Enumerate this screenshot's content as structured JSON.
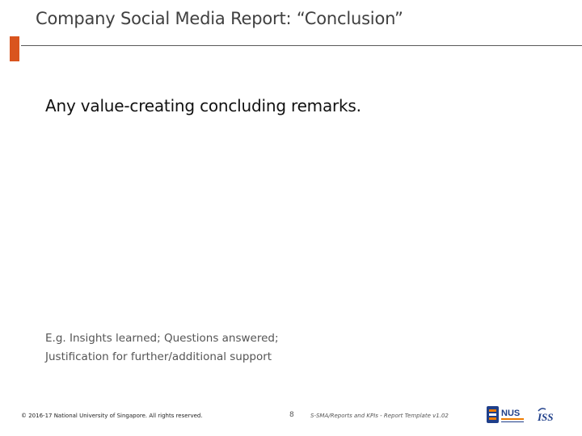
{
  "slide": {
    "title": "Company Social Media Report: “Conclusion”",
    "headline": "Any value-creating concluding remarks.",
    "note_lines": [
      "E.g. Insights learned; Questions answered;",
      "Justification for further/additional support"
    ]
  },
  "footer": {
    "copyright": "© 2016-17 National University of Singapore. All rights reserved.",
    "page_number": "8",
    "reference": "S-SMA/Reports and KPIs - Report Template v1.02",
    "logos": {
      "nus": "NUS",
      "iss": "ISS"
    }
  },
  "colors": {
    "accent": "#d9541e",
    "nus_blue": "#1f3f8a",
    "nus_orange": "#ef7c00"
  }
}
